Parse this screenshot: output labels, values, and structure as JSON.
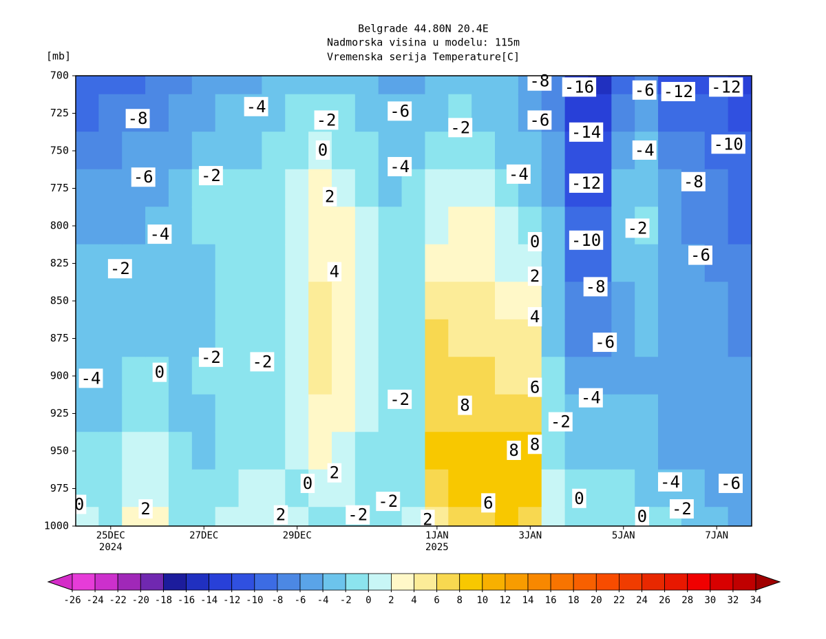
{
  "chart_data": {
    "type": "contour",
    "title": "Belgrade  44.80N 20.4E",
    "subtitle": "Nadmorska visina u modelu: 115m",
    "subtitle2": "Vremenska serija Temperature[C]",
    "y_label": "[mb]",
    "ylim": [
      1000,
      700
    ],
    "yticks": [
      700,
      725,
      750,
      775,
      800,
      825,
      850,
      875,
      900,
      925,
      950,
      975,
      1000
    ],
    "levels": [
      700,
      725,
      750,
      775,
      800,
      825,
      850,
      875,
      900,
      925,
      950,
      975,
      1000
    ],
    "categories": [
      null,
      "25DEC\n2024",
      null,
      null,
      null,
      "27DEC",
      null,
      null,
      null,
      "29DEC",
      null,
      null,
      null,
      null,
      null,
      "1JAN\n2025",
      null,
      null,
      null,
      "3JAN",
      null,
      null,
      null,
      "5JAN",
      null,
      null,
      null,
      "7JAN",
      null
    ],
    "values": [
      [
        -10,
        -9,
        -7,
        -6,
        -5,
        -4,
        -4,
        -4,
        -4,
        -3,
        -2,
        -1,
        0
      ],
      [
        -10,
        -8,
        -7,
        -6,
        -5,
        -3,
        -3,
        -3,
        -3,
        -3,
        -2,
        -1,
        -1
      ],
      [
        -9,
        -8,
        -6,
        -6,
        -5,
        -3,
        -3,
        -3,
        -2,
        -1,
        0,
        1,
        2
      ],
      [
        -8,
        -7,
        -6,
        -5,
        -4,
        -3,
        -3,
        -3,
        -2,
        -1,
        0,
        1,
        2
      ],
      [
        -7,
        -6,
        -5,
        -4,
        -3,
        -3,
        -3,
        -3,
        -3,
        -3,
        -2,
        -1,
        -1
      ],
      [
        -6,
        -5,
        -4,
        -2,
        -2,
        -3,
        -3,
        -3,
        -2,
        -3,
        -3,
        -1,
        -1
      ],
      [
        -5,
        -4,
        -3,
        -2,
        -2,
        -2,
        -2,
        -2,
        -2,
        -2,
        -2,
        -1,
        0
      ],
      [
        -5,
        -4,
        -3,
        -2,
        -2,
        -2,
        -2,
        -2,
        -2,
        -2,
        -1,
        0,
        1
      ],
      [
        -4,
        -3,
        -2,
        -1,
        -1,
        -1,
        -1,
        -1,
        -1,
        -1,
        -1,
        0,
        1
      ],
      [
        -4,
        -2,
        -1,
        0,
        1,
        1,
        1,
        1,
        1,
        1,
        0,
        -0.5,
        0
      ],
      [
        -3,
        -2,
        0,
        2,
        3,
        3,
        4,
        4,
        4,
        3,
        2,
        0,
        -1
      ],
      [
        -3,
        -2,
        -1,
        1,
        2,
        3,
        3,
        3,
        3,
        2,
        1,
        0,
        -1
      ],
      [
        -4,
        -3,
        -2,
        -1,
        0,
        1,
        1,
        1,
        1,
        0,
        -1,
        -2,
        -2
      ],
      [
        -5,
        -4,
        -4,
        -3,
        -2,
        -2,
        -2,
        -2,
        -2,
        -2,
        -2,
        -2,
        -2
      ],
      [
        -5,
        -4,
        -3,
        -2,
        -1,
        -1,
        -1,
        -1,
        -1,
        -1,
        -1,
        -1,
        0
      ],
      [
        -4,
        -3,
        -2,
        0,
        1,
        3,
        5,
        6,
        6,
        7,
        8,
        7,
        5
      ],
      [
        -4,
        -2,
        -1,
        1,
        2,
        3,
        4,
        5,
        6,
        7,
        9,
        9,
        7
      ],
      [
        -4,
        -3,
        -2,
        0,
        2,
        3,
        4,
        5,
        6,
        7,
        8,
        8,
        7
      ],
      [
        -4,
        -3,
        -3,
        -2,
        0,
        1,
        3,
        4,
        5,
        6,
        8,
        9,
        8
      ],
      [
        -6,
        -5,
        -4,
        -3,
        -1,
        1,
        3,
        4,
        5,
        6,
        8,
        8,
        7
      ],
      [
        -8,
        -7,
        -6,
        -5,
        -4,
        -3,
        -3,
        -3,
        -2,
        -1,
        -1,
        0,
        0
      ],
      [
        -14,
        -13,
        -12,
        -11,
        -10,
        -9,
        -8,
        -7,
        -5,
        -4,
        -3,
        -2,
        -1
      ],
      [
        -16,
        -14,
        -12,
        -11,
        -10,
        -9,
        -8,
        -7,
        -5,
        -4,
        -3,
        -2,
        -1
      ],
      [
        -10,
        -8,
        -6,
        -4,
        -3,
        -4,
        -5,
        -5,
        -5,
        -4,
        -3,
        -2,
        -1
      ],
      [
        -7,
        -5,
        -4,
        -3,
        -2,
        -3,
        -4,
        -4,
        -5,
        -4,
        -4,
        -3,
        -2
      ],
      [
        -12,
        -9,
        -7,
        -6,
        -5,
        -5,
        -5,
        -5,
        -5,
        -5,
        -5,
        -4,
        -2
      ],
      [
        -12,
        -10,
        -8,
        -8,
        -7,
        -6,
        -6,
        -6,
        -6,
        -5,
        -5,
        -4,
        -3
      ],
      [
        -12,
        -10,
        -9,
        -8,
        -7,
        -7,
        -6,
        -6,
        -6,
        -6,
        -6,
        -5,
        -4
      ],
      [
        -13,
        -11,
        -10,
        -10,
        -9,
        -8,
        -7,
        -7,
        -6,
        -6,
        -6,
        -6,
        -5
      ]
    ],
    "contour_labels": [
      {
        "value": -8,
        "at": [
          2.16,
          729
        ]
      },
      {
        "value": -4,
        "at": [
          7.24,
          721
        ]
      },
      {
        "value": -2,
        "at": [
          10.25,
          730
        ]
      },
      {
        "value": -6,
        "at": [
          13.4,
          724
        ]
      },
      {
        "value": -2,
        "at": [
          16.0,
          735
        ]
      },
      {
        "value": -8,
        "at": [
          19.4,
          704
        ]
      },
      {
        "value": -16,
        "at": [
          21.1,
          708
        ]
      },
      {
        "value": -6,
        "at": [
          23.9,
          710
        ]
      },
      {
        "value": -12,
        "at": [
          25.35,
          711
        ]
      },
      {
        "value": -12,
        "at": [
          27.4,
          708
        ]
      },
      {
        "value": -6,
        "at": [
          19.4,
          730
        ]
      },
      {
        "value": -14,
        "at": [
          21.4,
          738
        ]
      },
      {
        "value": 0,
        "at": [
          10.1,
          750
        ]
      },
      {
        "value": -4,
        "at": [
          13.4,
          761
        ]
      },
      {
        "value": -4,
        "at": [
          18.5,
          766
        ]
      },
      {
        "value": -4,
        "at": [
          23.9,
          750
        ]
      },
      {
        "value": -10,
        "at": [
          27.5,
          746
        ]
      },
      {
        "value": -6,
        "at": [
          2.4,
          768
        ]
      },
      {
        "value": -2,
        "at": [
          5.3,
          767
        ]
      },
      {
        "value": -12,
        "at": [
          21.4,
          772
        ]
      },
      {
        "value": -8,
        "at": [
          26.0,
          771
        ]
      },
      {
        "value": 2,
        "at": [
          10.4,
          781
        ]
      },
      {
        "value": -4,
        "at": [
          3.1,
          806
        ]
      },
      {
        "value": -2,
        "at": [
          23.6,
          802
        ]
      },
      {
        "value": 0,
        "at": [
          19.2,
          811
        ]
      },
      {
        "value": -10,
        "at": [
          21.4,
          810
        ]
      },
      {
        "value": -2,
        "at": [
          1.4,
          829
        ]
      },
      {
        "value": -6,
        "at": [
          26.3,
          820
        ]
      },
      {
        "value": 4,
        "at": [
          10.6,
          831
        ]
      },
      {
        "value": 2,
        "at": [
          19.2,
          834
        ]
      },
      {
        "value": -8,
        "at": [
          21.8,
          841
        ]
      },
      {
        "value": 4,
        "at": [
          19.2,
          861
        ]
      },
      {
        "value": -6,
        "at": [
          22.2,
          878
        ]
      },
      {
        "value": -2,
        "at": [
          5.3,
          888
        ]
      },
      {
        "value": -2,
        "at": [
          7.5,
          891
        ]
      },
      {
        "value": -4,
        "at": [
          0.15,
          902
        ]
      },
      {
        "value": 0,
        "at": [
          3.1,
          898
        ]
      },
      {
        "value": -2,
        "at": [
          13.4,
          916
        ]
      },
      {
        "value": 6,
        "at": [
          19.2,
          908
        ]
      },
      {
        "value": -4,
        "at": [
          21.6,
          915
        ]
      },
      {
        "value": 8,
        "at": [
          16.2,
          920
        ]
      },
      {
        "value": -2,
        "at": [
          20.3,
          931
        ]
      },
      {
        "value": 8,
        "at": [
          18.3,
          950
        ]
      },
      {
        "value": 8,
        "at": [
          19.2,
          946
        ]
      },
      {
        "value": 2,
        "at": [
          10.6,
          965
        ]
      },
      {
        "value": 0,
        "at": [
          9.45,
          972
        ]
      },
      {
        "value": -4,
        "at": [
          25.0,
          971
        ]
      },
      {
        "value": -6,
        "at": [
          27.6,
          972
        ]
      },
      {
        "value": 0,
        "at": [
          -0.35,
          986
        ]
      },
      {
        "value": -2,
        "at": [
          12.9,
          984
        ]
      },
      {
        "value": 6,
        "at": [
          17.2,
          985
        ]
      },
      {
        "value": 0,
        "at": [
          21.1,
          982
        ]
      },
      {
        "value": -2,
        "at": [
          25.5,
          989
        ]
      },
      {
        "value": 2,
        "at": [
          2.5,
          989
        ]
      },
      {
        "value": 2,
        "at": [
          8.3,
          993
        ]
      },
      {
        "value": -2,
        "at": [
          11.6,
          993
        ]
      },
      {
        "value": 2,
        "at": [
          14.6,
          996
        ]
      },
      {
        "value": 0,
        "at": [
          23.8,
          994
        ]
      }
    ],
    "colorbar": {
      "levels": [
        -26,
        -24,
        -22,
        -20,
        -18,
        -16,
        -14,
        -12,
        -10,
        -8,
        -6,
        -4,
        -2,
        0,
        2,
        4,
        6,
        8,
        10,
        12,
        14,
        16,
        18,
        20,
        22,
        24,
        26,
        28,
        30,
        32,
        34
      ],
      "colors": [
        "#d42cc8",
        "#e63cd8",
        "#cc30cc",
        "#a028b8",
        "#7028b0",
        "#1c1c9c",
        "#2030c0",
        "#2840d8",
        "#3050e0",
        "#3c6ce4",
        "#4c88e4",
        "#5aa4e8",
        "#6cc4ec",
        "#8ce4ee",
        "#c8f6f6",
        "#fff8c8",
        "#fcec98",
        "#f8d850",
        "#f8c800",
        "#f8b000",
        "#f89c00",
        "#f88800",
        "#f87400",
        "#f86000",
        "#f84c00",
        "#f03c00",
        "#e82800",
        "#e81800",
        "#f00000",
        "#d80000",
        "#c00000",
        "#a00000"
      ]
    }
  }
}
